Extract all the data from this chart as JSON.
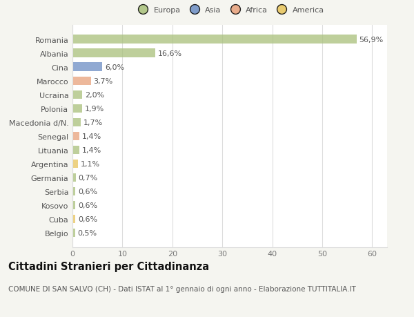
{
  "categories": [
    "Romania",
    "Albania",
    "Cina",
    "Marocco",
    "Ucraina",
    "Polonia",
    "Macedonia d/N.",
    "Senegal",
    "Lituania",
    "Argentina",
    "Germania",
    "Serbia",
    "Kosovo",
    "Cuba",
    "Belgio"
  ],
  "values": [
    56.9,
    16.6,
    6.0,
    3.7,
    2.0,
    1.9,
    1.7,
    1.4,
    1.4,
    1.1,
    0.7,
    0.6,
    0.6,
    0.6,
    0.5
  ],
  "labels": [
    "56,9%",
    "16,6%",
    "6,0%",
    "3,7%",
    "2,0%",
    "1,9%",
    "1,7%",
    "1,4%",
    "1,4%",
    "1,1%",
    "0,7%",
    "0,6%",
    "0,6%",
    "0,6%",
    "0,5%"
  ],
  "bar_colors": [
    "#a8c07a",
    "#a8c07a",
    "#6b8dc4",
    "#e8a07a",
    "#a8c07a",
    "#a8c07a",
    "#a8c07a",
    "#e8a07a",
    "#a8c07a",
    "#e8c45a",
    "#a8c07a",
    "#a8c07a",
    "#a8c07a",
    "#e8c45a",
    "#a8c07a"
  ],
  "legend_labels": [
    "Europa",
    "Asia",
    "Africa",
    "America"
  ],
  "legend_colors": [
    "#a8c07a",
    "#6b8dc4",
    "#e8a07a",
    "#e8c45a"
  ],
  "title": "Cittadini Stranieri per Cittadinanza",
  "subtitle": "COMUNE DI SAN SALVO (CH) - Dati ISTAT al 1° gennaio di ogni anno - Elaborazione TUTTITALIA.IT",
  "xlim": [
    0,
    63
  ],
  "xticks": [
    0,
    10,
    20,
    30,
    40,
    50,
    60
  ],
  "background_color": "#f5f5f0",
  "bar_background": "#ffffff",
  "grid_color": "#dddddd",
  "title_fontsize": 10.5,
  "subtitle_fontsize": 7.5,
  "label_fontsize": 8,
  "tick_fontsize": 8,
  "bar_height": 0.62,
  "bar_alpha": 0.75
}
